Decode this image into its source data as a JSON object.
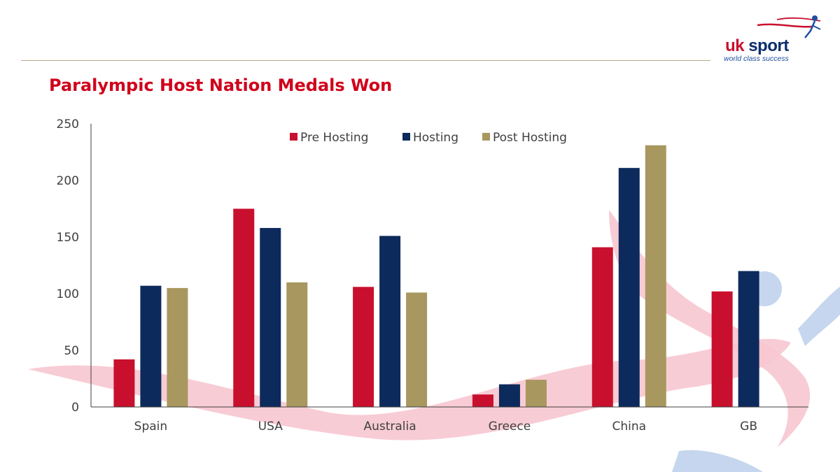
{
  "branding": {
    "logo_name_part1": "uk",
    "logo_name_part2": "sport",
    "logo_tagline": "world class success"
  },
  "colors": {
    "title": "#d0021b",
    "pre_hosting": "#c8102e",
    "hosting": "#0d2a5c",
    "post_hosting": "#a8975f",
    "swoosh_pink": "#f7c6d0",
    "swoosh_blue": "#c5d6ee"
  },
  "chart_data": {
    "type": "bar",
    "title": "Paralympic Host Nation Medals Won",
    "xlabel": "",
    "ylabel": "",
    "ylim": [
      0,
      250
    ],
    "yticks": [
      0,
      50,
      100,
      150,
      200,
      250
    ],
    "grid": false,
    "legend_position": "top-center",
    "categories": [
      "Spain",
      "USA",
      "Australia",
      "Greece",
      "China",
      "GB"
    ],
    "series": [
      {
        "name": "Pre Hosting",
        "color": "#c8102e",
        "values": [
          42,
          175,
          106,
          11,
          141,
          102
        ]
      },
      {
        "name": "Hosting",
        "color": "#0d2a5c",
        "values": [
          107,
          158,
          151,
          20,
          211,
          120
        ]
      },
      {
        "name": "Post Hosting",
        "color": "#a8975f",
        "values": [
          105,
          110,
          101,
          24,
          231,
          null
        ]
      }
    ]
  }
}
